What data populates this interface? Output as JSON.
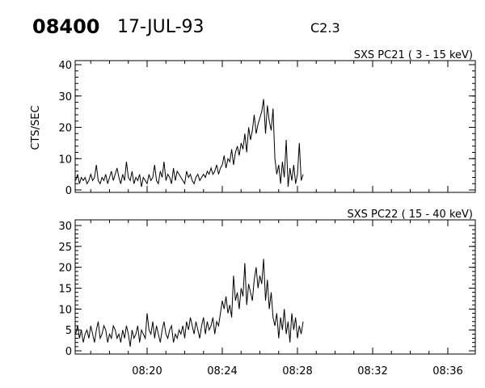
{
  "header": {
    "id": "08400",
    "date": "17-JUL-93",
    "class": "C2.3"
  },
  "chart_data": [
    {
      "type": "line",
      "title": "SXS PC21  (  3 - 15 keV)",
      "ylabel": "CTS/SEC",
      "xlabel": "",
      "xlim": [
        "08:16:10",
        "08:36:00"
      ],
      "ylim": [
        0,
        40
      ],
      "yticks": [
        "0",
        "10",
        "20",
        "30",
        "40"
      ],
      "xticks": [
        "08:20",
        "08:24",
        "08:28",
        "08:32",
        "08:36"
      ],
      "xtick_labels_shown": false,
      "grid": false,
      "color": "#000000",
      "series_key": "pc21"
    },
    {
      "type": "line",
      "title": "SXS PC22  ( 15 - 40 keV)",
      "ylabel": "",
      "xlabel": "",
      "xlim": [
        "08:16:10",
        "08:36:00"
      ],
      "ylim": [
        0,
        30
      ],
      "yticks": [
        "0",
        "5",
        "10",
        "15",
        "20",
        "25",
        "30"
      ],
      "xticks": [
        "08:20",
        "08:24",
        "08:28",
        "08:32",
        "08:36"
      ],
      "xtick_labels_shown": true,
      "grid": false,
      "color": "#000000",
      "series_key": "pc22"
    }
  ],
  "series_data": {
    "x": [
      "08:16:12",
      "08:16:18",
      "08:16:24",
      "08:16:30",
      "08:16:36",
      "08:16:42",
      "08:16:48",
      "08:16:54",
      "08:17:00",
      "08:17:06",
      "08:17:12",
      "08:17:18",
      "08:17:24",
      "08:17:30",
      "08:17:36",
      "08:17:42",
      "08:17:48",
      "08:17:54",
      "08:18:00",
      "08:18:06",
      "08:18:12",
      "08:18:18",
      "08:18:24",
      "08:18:30",
      "08:18:36",
      "08:18:42",
      "08:18:48",
      "08:18:54",
      "08:19:00",
      "08:19:06",
      "08:19:12",
      "08:19:18",
      "08:19:24",
      "08:19:30",
      "08:19:36",
      "08:19:42",
      "08:19:48",
      "08:19:54",
      "08:20:00",
      "08:20:06",
      "08:20:12",
      "08:20:18",
      "08:20:24",
      "08:20:30",
      "08:20:36",
      "08:20:42",
      "08:20:48",
      "08:20:54",
      "08:21:00",
      "08:21:06",
      "08:21:12",
      "08:21:18",
      "08:21:24",
      "08:21:30",
      "08:21:36",
      "08:21:42",
      "08:21:48",
      "08:21:54",
      "08:22:00",
      "08:22:06",
      "08:22:12",
      "08:22:18",
      "08:22:24",
      "08:22:30",
      "08:22:36",
      "08:22:42",
      "08:22:48",
      "08:22:54",
      "08:23:00",
      "08:23:06",
      "08:23:12",
      "08:23:18",
      "08:23:24",
      "08:23:30",
      "08:23:36",
      "08:23:42",
      "08:23:48",
      "08:23:54",
      "08:24:00",
      "08:24:06",
      "08:24:12",
      "08:24:18",
      "08:24:24",
      "08:24:30",
      "08:24:36",
      "08:24:42",
      "08:24:48",
      "08:24:54",
      "08:25:00",
      "08:25:06",
      "08:25:12",
      "08:25:18",
      "08:25:24",
      "08:25:30",
      "08:25:36",
      "08:25:42",
      "08:25:48",
      "08:25:54",
      "08:26:00",
      "08:26:06",
      "08:26:12",
      "08:26:18",
      "08:26:24",
      "08:26:30",
      "08:26:36",
      "08:26:42",
      "08:26:48",
      "08:26:54",
      "08:27:00",
      "08:27:06",
      "08:27:12",
      "08:27:18",
      "08:27:24",
      "08:27:30",
      "08:27:36",
      "08:27:42",
      "08:27:48",
      "08:27:54",
      "08:28:00",
      "08:28:06",
      "08:28:12",
      "08:28:18"
    ],
    "pc21": [
      3,
      5,
      2,
      4,
      3,
      4,
      2,
      3,
      5,
      3,
      4,
      8,
      3,
      2,
      4,
      3,
      5,
      2,
      4,
      6,
      3,
      5,
      7,
      4,
      2,
      5,
      3,
      9,
      4,
      3,
      6,
      2,
      4,
      3,
      5,
      1,
      4,
      3,
      2,
      5,
      3,
      4,
      8,
      3,
      2,
      6,
      4,
      9,
      3,
      5,
      4,
      2,
      7,
      3,
      6,
      5,
      4,
      3,
      2,
      6,
      4,
      5,
      3,
      2,
      4,
      5,
      3,
      4,
      5,
      4,
      6,
      5,
      7,
      5,
      6,
      8,
      5,
      7,
      8,
      11,
      7,
      10,
      9,
      13,
      8,
      12,
      14,
      11,
      15,
      13,
      18,
      12,
      20,
      16,
      19,
      24,
      18,
      21,
      23,
      25,
      29,
      18,
      27,
      22,
      19,
      26,
      10,
      5,
      8,
      2,
      9,
      4,
      16,
      1,
      7,
      3,
      8,
      2,
      5,
      15,
      3,
      5
    ],
    "pc22": [
      4,
      6,
      3,
      5,
      2,
      4,
      5,
      3,
      6,
      4,
      2,
      5,
      7,
      3,
      4,
      6,
      5,
      2,
      4,
      3,
      6,
      5,
      3,
      4,
      2,
      5,
      3,
      6,
      4,
      1,
      5,
      3,
      4,
      6,
      2,
      5,
      4,
      3,
      9,
      5,
      4,
      7,
      3,
      6,
      4,
      2,
      5,
      7,
      4,
      3,
      5,
      6,
      2,
      4,
      3,
      5,
      4,
      6,
      3,
      7,
      5,
      8,
      6,
      4,
      7,
      5,
      3,
      6,
      8,
      4,
      7,
      5,
      6,
      8,
      4,
      7,
      6,
      9,
      12,
      10,
      13,
      9,
      11,
      8,
      18,
      12,
      14,
      10,
      15,
      13,
      21,
      11,
      16,
      14,
      12,
      17,
      20,
      15,
      18,
      16,
      22,
      12,
      17,
      10,
      14,
      8,
      6,
      9,
      3,
      8,
      5,
      10,
      4,
      7,
      2,
      9,
      5,
      8,
      3,
      6,
      4,
      7
    ]
  }
}
